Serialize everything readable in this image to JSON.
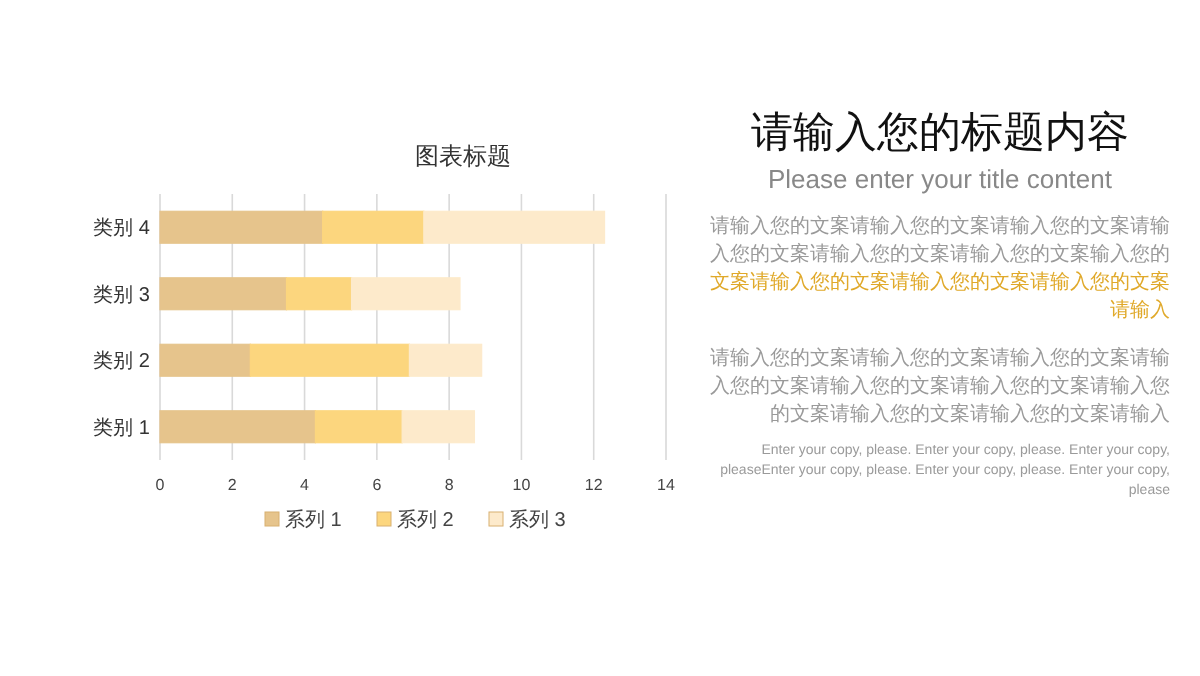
{
  "chart_data": [
    {
      "type": "bar",
      "title": "图表标题",
      "orientation": "horizontal",
      "stacked": true,
      "categories": [
        "类别 4",
        "类别 3",
        "类别 2",
        "类别 1"
      ],
      "series": [
        {
          "name": "系列 1",
          "color": "#e6c48c",
          "values": [
            4.5,
            3.5,
            2.5,
            4.3
          ]
        },
        {
          "name": "系列 2",
          "color": "#fcd67e",
          "values": [
            2.8,
            1.8,
            4.4,
            2.4
          ]
        },
        {
          "name": "系列 3",
          "color": "#fdeacb",
          "values": [
            5,
            3,
            2,
            2
          ]
        }
      ],
      "xlim": [
        0,
        14
      ],
      "xticks": [
        0,
        2,
        4,
        6,
        8,
        10,
        12,
        14
      ],
      "grid": "x",
      "legend": "bottom"
    },
    {
      "type": "other",
      "title": "请输入您的标题内容",
      "subtitle": "Please enter your title content",
      "annotations": [
        "请输入您的文案请输入您的文案请输入您的文案请输入您的文案请输入您的文案请输入您的文案输入您的",
        "文案请输入您的文案请输入您的文案请输入您的文案请输入",
        "请输入您的文案请输入您的文案请输入您的文案请输入您的文案请输入您的文案请输入您的文案请输入您的文案请输入您的文案请输入您的文案请输入",
        "Enter your copy, please. Enter your copy, please. Enter your copy, pleaseEnter your copy, please. Enter your copy, please. Enter your copy, please"
      ]
    }
  ]
}
